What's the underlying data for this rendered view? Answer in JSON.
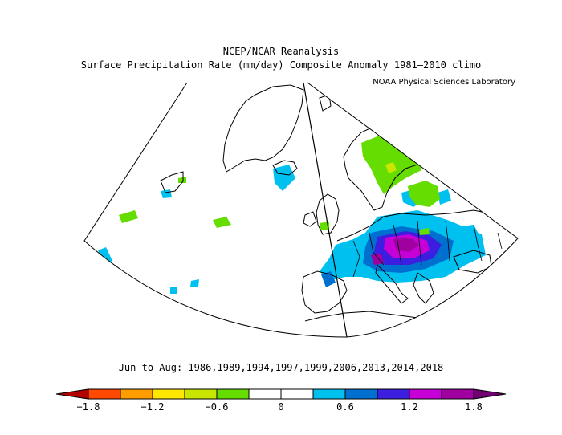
{
  "title": {
    "line1": "NCEP/NCAR Reanalysis",
    "line2": "Surface Precipitation Rate (mm/day) Composite Anomaly 1981—2010 climo",
    "credit": "NOAA Physical Sciences Laboratory"
  },
  "period_text": "Jun to Aug: 1986,1989,1994,1997,1999,2006,2013,2014,2018",
  "colorbar": {
    "labels": [
      "−1.8",
      "−1.2",
      "−0.6",
      "0",
      "0.6",
      "1.2",
      "1.8"
    ],
    "bins": [
      {
        "range": [
          -2.1,
          -1.8
        ],
        "color": "#b30000"
      },
      {
        "range": [
          -1.8,
          -1.5
        ],
        "color": "#ff4800"
      },
      {
        "range": [
          -1.5,
          -1.2
        ],
        "color": "#ff9d00"
      },
      {
        "range": [
          -1.2,
          -0.9
        ],
        "color": "#ffe600"
      },
      {
        "range": [
          -0.9,
          -0.6
        ],
        "color": "#c8e600"
      },
      {
        "range": [
          -0.6,
          -0.3
        ],
        "color": "#66dd00"
      },
      {
        "range": [
          -0.3,
          0.0
        ],
        "color": "#ffffff"
      },
      {
        "range": [
          0.0,
          0.3
        ],
        "color": "#ffffff"
      },
      {
        "range": [
          0.3,
          0.6
        ],
        "color": "#00c0f0"
      },
      {
        "range": [
          0.6,
          0.9
        ],
        "color": "#0070d0"
      },
      {
        "range": [
          0.9,
          1.2
        ],
        "color": "#3c1ee0"
      },
      {
        "range": [
          1.2,
          1.5
        ],
        "color": "#c800d8"
      },
      {
        "range": [
          1.5,
          1.8
        ],
        "color": "#a000a0"
      },
      {
        "range": [
          1.8,
          2.1
        ],
        "color": "#700070"
      }
    ]
  },
  "map": {
    "projection": "conic",
    "region": "North Atlantic and Europe",
    "variable": "Surface Precipitation Rate anomaly",
    "units": "mm/day"
  }
}
